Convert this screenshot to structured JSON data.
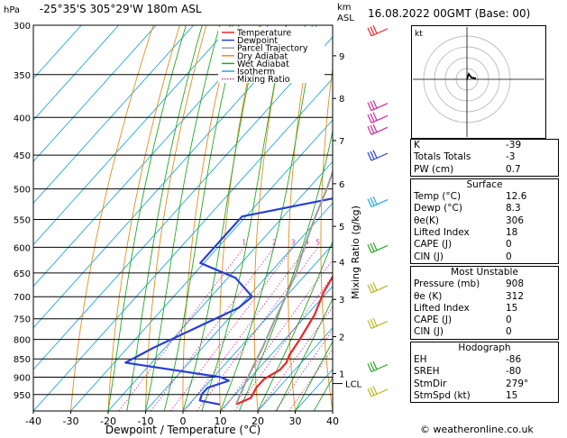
{
  "header": {
    "pressure_unit": "hPa",
    "location": "-25°35'S  305°29'W  180m  ASL",
    "height_unit_km": "km",
    "height_unit_asl": "ASL",
    "datetime": "16.08.2022  00GMT  (Base: 00)"
  },
  "chart_data": {
    "type": "line",
    "xlabel": "Dewpoint / Temperature (°C)",
    "ylabel_right": "Mixing Ratio (g/kg)",
    "ylabel_left": "hPa",
    "xlim": [
      -40,
      40
    ],
    "ylim": [
      300,
      1000
    ],
    "y_scale": "log",
    "x_ticks": [
      -40,
      -30,
      -20,
      -10,
      0,
      10,
      20,
      30,
      40
    ],
    "pressure_levels": [
      300,
      350,
      400,
      450,
      500,
      550,
      600,
      650,
      700,
      750,
      800,
      850,
      900,
      950
    ],
    "km_labels": [
      {
        "p": 330,
        "km": "9"
      },
      {
        "p": 377,
        "km": "8"
      },
      {
        "p": 430,
        "km": "7"
      },
      {
        "p": 492,
        "km": "6"
      },
      {
        "p": 562,
        "km": "5"
      },
      {
        "p": 628,
        "km": "4"
      },
      {
        "p": 706,
        "km": "3"
      },
      {
        "p": 793,
        "km": "2"
      },
      {
        "p": 890,
        "km": "1"
      }
    ],
    "lcl": {
      "p": 918,
      "label": "LCL"
    },
    "mixing_ratio_labels": [
      "1",
      "2",
      "3",
      "4",
      "5",
      "8",
      "10",
      "15",
      "20",
      "25"
    ],
    "mixing_ratio_values": [
      1,
      2,
      3,
      4,
      5,
      8,
      10,
      15,
      20,
      25
    ],
    "legend": [
      {
        "name": "Temperature",
        "color": "#e8262a",
        "style": "solid"
      },
      {
        "name": "Dewpoint",
        "color": "#2a3fd6",
        "style": "solid"
      },
      {
        "name": "Parcel Trajectory",
        "color": "#9c9c9c",
        "style": "solid"
      },
      {
        "name": "Dry Adiabat",
        "color": "#e0901a",
        "style": "solid"
      },
      {
        "name": "Wet Adiabat",
        "color": "#26a826",
        "style": "solid"
      },
      {
        "name": "Isotherm",
        "color": "#22a7d9",
        "style": "solid"
      },
      {
        "name": "Mixing Ratio",
        "color": "#cc2aa2",
        "style": "dotted"
      }
    ],
    "series": [
      {
        "name": "Temperature",
        "color": "#e8262a",
        "points": [
          [
            12.6,
            980
          ],
          [
            15,
            960
          ],
          [
            14,
            930
          ],
          [
            14,
            905
          ],
          [
            16,
            880
          ],
          [
            16,
            860
          ],
          [
            15,
            840
          ],
          [
            14,
            800
          ],
          [
            12,
            740
          ],
          [
            9,
            690
          ],
          [
            7,
            640
          ],
          [
            5,
            600
          ],
          [
            1,
            550
          ],
          [
            0,
            520
          ],
          [
            -3,
            490
          ],
          [
            -6,
            460
          ],
          [
            -10,
            430
          ],
          [
            -12,
            410
          ],
          [
            -14,
            390
          ],
          [
            -15,
            370
          ],
          [
            -18,
            350
          ],
          [
            -21,
            330
          ],
          [
            -24,
            315
          ],
          [
            -27,
            300
          ]
        ]
      },
      {
        "name": "Dewpoint",
        "color": "#2a3fd6",
        "points": [
          [
            8.3,
            980
          ],
          [
            2,
            968
          ],
          [
            1,
            948
          ],
          [
            1,
            930
          ],
          [
            5,
            910
          ],
          [
            2,
            900
          ],
          [
            -27,
            860
          ],
          [
            -23,
            820
          ],
          [
            -10,
            725
          ],
          [
            -9,
            700
          ],
          [
            -18,
            660
          ],
          [
            -31,
            630
          ],
          [
            -31,
            580
          ],
          [
            -31,
            545
          ],
          [
            -4,
            505
          ],
          [
            -4,
            470
          ],
          [
            -5,
            440
          ],
          [
            -6,
            410
          ],
          [
            -19,
            390
          ],
          [
            -22,
            372
          ],
          [
            -22,
            340
          ],
          [
            -22,
            320
          ],
          [
            -22,
            300
          ]
        ]
      },
      {
        "name": "Parcel Trajectory",
        "color": "#9c9c9c",
        "points": [
          [
            12.6,
            980
          ],
          [
            10,
            918
          ],
          [
            8,
            870
          ],
          [
            6,
            820
          ],
          [
            3,
            760
          ],
          [
            0,
            700
          ],
          [
            -3,
            650
          ],
          [
            -7,
            600
          ],
          [
            -11,
            550
          ],
          [
            -15,
            500
          ],
          [
            -20,
            450
          ],
          [
            -26,
            400
          ],
          [
            -31,
            350
          ],
          [
            -38,
            300
          ]
        ]
      }
    ],
    "wind_barbs_color": "#e8262a",
    "hodograph_label": "kt"
  },
  "indices": {
    "top": [
      {
        "label": "K",
        "value": "-39"
      },
      {
        "label": "Totals Totals",
        "value": "-3"
      },
      {
        "label": "PW (cm)",
        "value": "0.7"
      }
    ],
    "surface": {
      "title": "Surface",
      "rows": [
        {
          "label": "Temp (°C)",
          "value": "12.6"
        },
        {
          "label": "Dewp (°C)",
          "value": "8.3"
        },
        {
          "label": "θe(K)",
          "value": "306"
        },
        {
          "label": "Lifted Index",
          "value": "18"
        },
        {
          "label": "CAPE (J)",
          "value": "0"
        },
        {
          "label": "CIN (J)",
          "value": "0"
        }
      ]
    },
    "most_unstable": {
      "title": "Most Unstable",
      "rows": [
        {
          "label": "Pressure (mb)",
          "value": "908"
        },
        {
          "label": "θe (K)",
          "value": "312"
        },
        {
          "label": "Lifted Index",
          "value": "15"
        },
        {
          "label": "CAPE (J)",
          "value": "0"
        },
        {
          "label": "CIN (J)",
          "value": "0"
        }
      ]
    },
    "hodograph": {
      "title": "Hodograph",
      "rows": [
        {
          "label": "EH",
          "value": "-86"
        },
        {
          "label": "SREH",
          "value": "-80"
        },
        {
          "label": "StmDir",
          "value": "279°"
        },
        {
          "label": "StmSpd (kt)",
          "value": "15"
        }
      ]
    }
  },
  "footer": "© weatheronline.co.uk"
}
